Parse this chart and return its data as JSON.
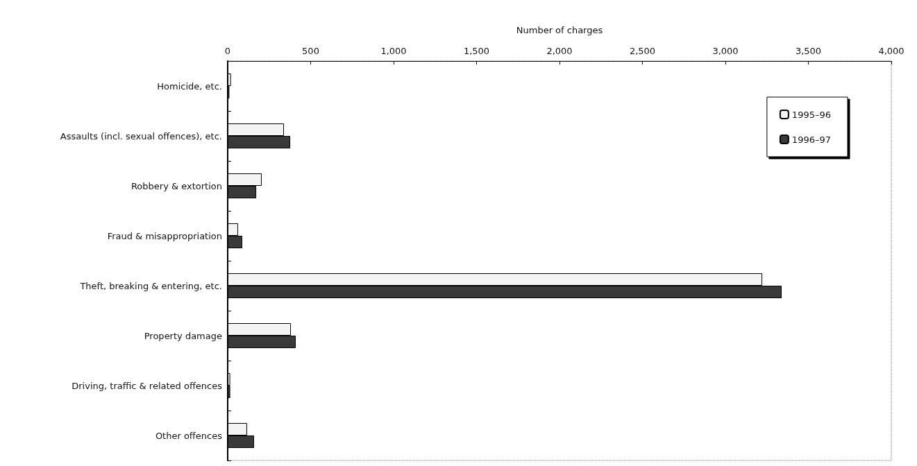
{
  "chart_data": {
    "type": "bar",
    "orientation": "horizontal",
    "xlabel": "Number of charges",
    "categories": [
      "Homicide, etc.",
      "Assaults (incl. sexual offences), etc.",
      "Robbery & extortion",
      "Fraud & misappropriation",
      "Theft, breaking & entering, etc.",
      "Property damage",
      "Driving, traffic & related offences",
      "Other offences"
    ],
    "series": [
      {
        "name": "1995–96",
        "color": "#f4f4f4",
        "values": [
          20,
          339,
          205,
          63,
          3222,
          381,
          15,
          117
        ]
      },
      {
        "name": "1996–97",
        "color": "#3a3a3a",
        "values": [
          10,
          377,
          172,
          88,
          3339,
          410,
          15,
          159
        ]
      }
    ],
    "xlim": [
      0,
      4000
    ],
    "xticks": [
      {
        "value": 0,
        "label": "0"
      },
      {
        "value": 500,
        "label": "500"
      },
      {
        "value": 1000,
        "label": "1,000"
      },
      {
        "value": 1500,
        "label": "1,500"
      },
      {
        "value": 2000,
        "label": "2,000"
      },
      {
        "value": 2500,
        "label": "2,500"
      },
      {
        "value": 3000,
        "label": "3,000"
      },
      {
        "value": 3500,
        "label": "3,500"
      },
      {
        "value": 4000,
        "label": "4,000"
      }
    ],
    "grid": false,
    "legend": "top right"
  }
}
